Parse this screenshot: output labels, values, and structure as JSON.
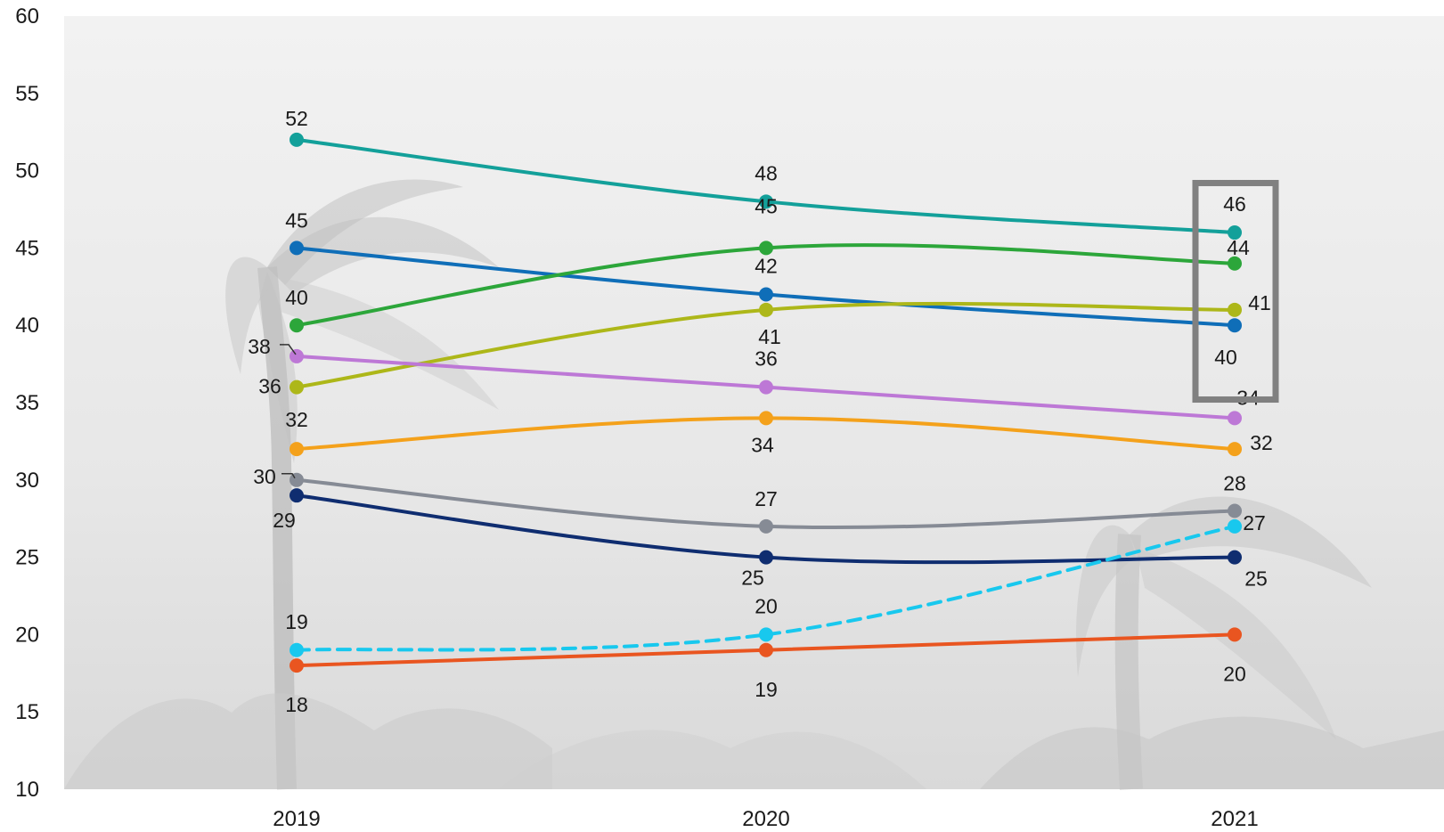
{
  "chart_data": {
    "type": "line",
    "title": "",
    "xlabel": "",
    "ylabel": "",
    "categories": [
      "2019",
      "2020",
      "2021"
    ],
    "ylim": [
      10,
      60
    ],
    "yticks": [
      10,
      15,
      20,
      25,
      30,
      35,
      40,
      45,
      50,
      55,
      60
    ],
    "grid": false,
    "legend": "none",
    "background": "grey photo of palm trees in a storm",
    "highlight": "box around the 2021 values 46, 44, 41 and 40",
    "series": [
      {
        "color": "#13a09a",
        "style": "solid",
        "values": [
          52,
          48,
          46
        ]
      },
      {
        "color": "#0f6eb8",
        "style": "solid",
        "values": [
          45,
          42,
          40
        ]
      },
      {
        "color": "#2ca63a",
        "style": "solid",
        "values": [
          40,
          45,
          44
        ]
      },
      {
        "color": "#adb719",
        "style": "solid",
        "values": [
          36,
          41,
          41
        ]
      },
      {
        "color": "#bd78d6",
        "style": "solid",
        "values": [
          38,
          36,
          34
        ]
      },
      {
        "color": "#f4a11b",
        "style": "solid",
        "values": [
          32,
          34,
          32
        ]
      },
      {
        "color": "#868b95",
        "style": "solid",
        "values": [
          30,
          27,
          28
        ]
      },
      {
        "color": "#0f2d70",
        "style": "solid",
        "values": [
          29,
          25,
          25
        ]
      },
      {
        "color": "#18c8ee",
        "style": "dashed",
        "values": [
          19,
          20,
          27
        ]
      },
      {
        "color": "#e95520",
        "style": "solid",
        "values": [
          18,
          19,
          20
        ]
      }
    ]
  }
}
